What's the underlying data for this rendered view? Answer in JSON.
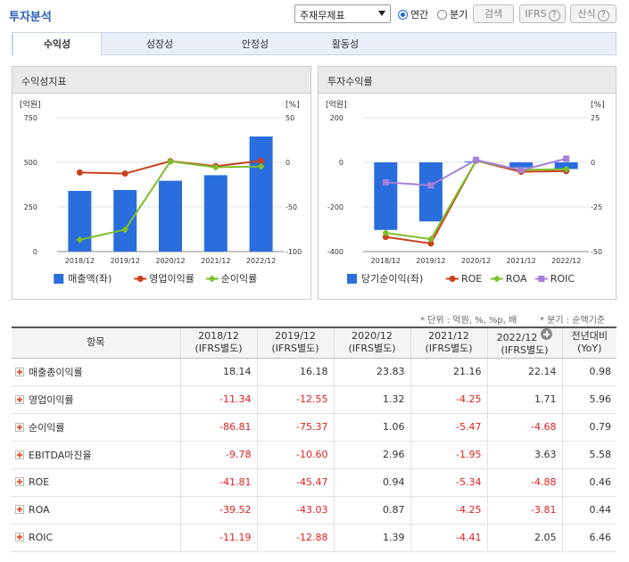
{
  "header": {
    "title": "투자분석",
    "select_value": "주재무제표",
    "radio_annual": "연간",
    "radio_quarter": "분기",
    "search_btn": "검색",
    "ifrs_btn": "IFRS",
    "calc_btn": "산식"
  },
  "tabs": [
    "수익성",
    "성장성",
    "안정성",
    "활동성"
  ],
  "panels": {
    "left_title": "수익성지표",
    "right_title": "투자수익률"
  },
  "notes": {
    "unit": "* 단위 : 억원, %, %p, 배",
    "quarter": "* 분기 : 순액기준"
  },
  "colors": {
    "bar": "#2a6ede",
    "op_line": "#c9421e",
    "net_line": "#7cbf2a",
    "roe_line": "#c9421e",
    "roa_line": "#7cbf2a",
    "roic_line": "#a67fd8",
    "negative": "#e02020"
  },
  "chart_data": [
    {
      "type": "bar",
      "categories": [
        "2018/12",
        "2019/12",
        "2020/12",
        "2021/12",
        "2022/12"
      ],
      "y_left_unit": "[억원]",
      "y_right_unit": "[%]",
      "ylim_left": [
        0,
        750
      ],
      "ylim_right": [
        -100,
        50
      ],
      "yticks_left": [
        "750",
        "500",
        "250",
        "0"
      ],
      "yticks_right": [
        "50",
        "0",
        "-50",
        "-100"
      ],
      "series": [
        {
          "name": "매출액(좌)",
          "type": "bar",
          "axis": "left",
          "values": [
            340,
            345,
            397,
            428,
            645
          ]
        },
        {
          "name": "영업이익률",
          "type": "line",
          "axis": "right",
          "values": [
            -11.34,
            -12.55,
            1.32,
            -4.25,
            1.71
          ]
        },
        {
          "name": "순이익률",
          "type": "line",
          "axis": "right",
          "values": [
            -86.81,
            -75.37,
            1.06,
            -5.47,
            -4.68
          ]
        }
      ]
    },
    {
      "type": "bar",
      "categories": [
        "2018/12",
        "2019/12",
        "2020/12",
        "2021/12",
        "2022/12"
      ],
      "y_left_unit": "[억원]",
      "y_right_unit": "[%]",
      "ylim_left": [
        -400,
        200
      ],
      "ylim_right": [
        -50,
        25
      ],
      "yticks_left": [
        "200",
        "0",
        "-200",
        "-400"
      ],
      "yticks_right": [
        "25",
        "0",
        "-25",
        "-50"
      ],
      "series": [
        {
          "name": "당기순이익(좌)",
          "type": "bar",
          "axis": "left",
          "values": [
            -303,
            -265,
            4,
            -23,
            -30
          ]
        },
        {
          "name": "ROE",
          "type": "line",
          "axis": "right",
          "values": [
            -41.81,
            -45.47,
            0.94,
            -5.34,
            -4.88
          ]
        },
        {
          "name": "ROA",
          "type": "line",
          "axis": "right",
          "values": [
            -39.52,
            -43.03,
            0.87,
            -4.25,
            -3.81
          ]
        },
        {
          "name": "ROIC",
          "type": "line",
          "axis": "right",
          "values": [
            -11.19,
            -12.88,
            1.39,
            -4.41,
            2.05
          ]
        }
      ]
    }
  ],
  "table": {
    "headers": [
      {
        "l1": "항목",
        "l2": ""
      },
      {
        "l1": "2018/12",
        "l2": "(IFRS별도)"
      },
      {
        "l1": "2019/12",
        "l2": "(IFRS별도)"
      },
      {
        "l1": "2020/12",
        "l2": "(IFRS별도)"
      },
      {
        "l1": "2021/12",
        "l2": "(IFRS별도)"
      },
      {
        "l1": "2022/12",
        "l2": "(IFRS별도)"
      },
      {
        "l1": "전년대비",
        "l2": "(YoY)"
      }
    ],
    "rows": [
      {
        "label": "매출총이익률",
        "values": [
          "18.14",
          "16.18",
          "23.83",
          "21.16",
          "22.14",
          "0.98"
        ]
      },
      {
        "label": "영업이익률",
        "values": [
          "-11.34",
          "-12.55",
          "1.32",
          "-4.25",
          "1.71",
          "5.96"
        ]
      },
      {
        "label": "순이익률",
        "values": [
          "-86.81",
          "-75.37",
          "1.06",
          "-5.47",
          "-4.68",
          "0.79"
        ]
      },
      {
        "label": "EBITDA마진율",
        "values": [
          "-9.78",
          "-10.60",
          "2.96",
          "-1.95",
          "3.63",
          "5.58"
        ]
      },
      {
        "label": "ROE",
        "values": [
          "-41.81",
          "-45.47",
          "0.94",
          "-5.34",
          "-4.88",
          "0.46"
        ]
      },
      {
        "label": "ROA",
        "values": [
          "-39.52",
          "-43.03",
          "0.87",
          "-4.25",
          "-3.81",
          "0.44"
        ]
      },
      {
        "label": "ROIC",
        "values": [
          "-11.19",
          "-12.88",
          "1.39",
          "-4.41",
          "2.05",
          "6.46"
        ]
      }
    ]
  }
}
